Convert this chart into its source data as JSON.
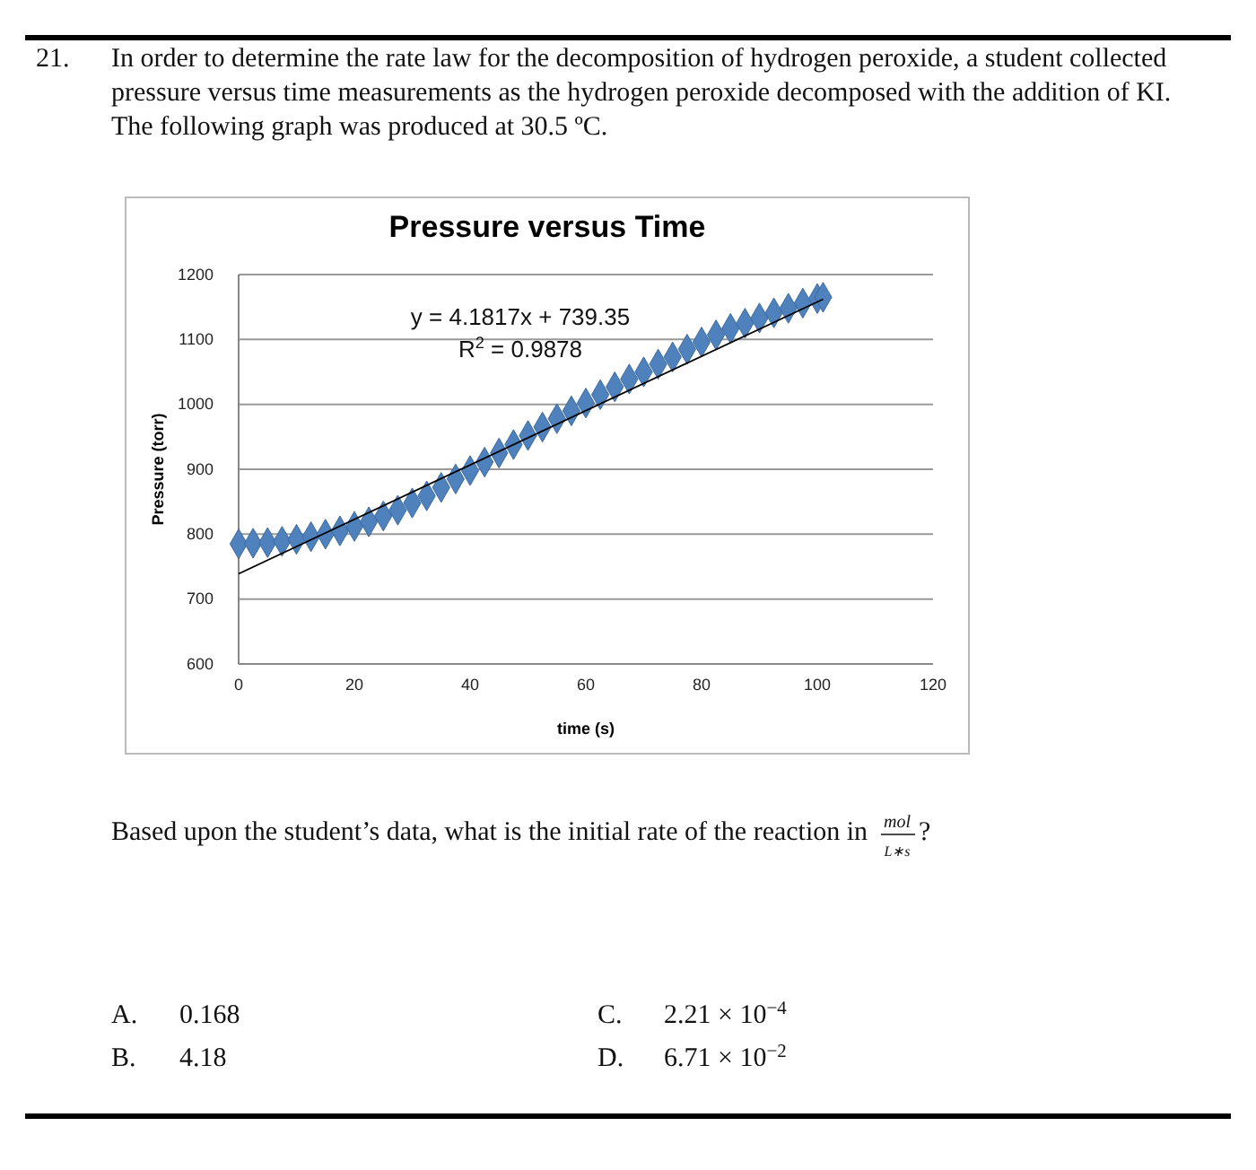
{
  "chart_data": {
    "type": "scatter",
    "title": "Pressure versus Time",
    "xlabel": "time (s)",
    "ylabel": "Pressure (torr)",
    "xlim": [
      0,
      120
    ],
    "xticks": [
      0,
      20,
      40,
      60,
      80,
      100,
      120
    ],
    "ylim": [
      600,
      1200
    ],
    "yticks": [
      600,
      700,
      800,
      900,
      1000,
      1100,
      1200
    ],
    "grid": "y",
    "series": [
      {
        "color": "#4f81bd",
        "marker": "diamond",
        "x": [
          0,
          2.5,
          5,
          7.5,
          10,
          12.5,
          15,
          17.5,
          20,
          22.5,
          25,
          27.5,
          30,
          32.5,
          35,
          37.5,
          40,
          42.5,
          45,
          47.5,
          50,
          52.5,
          55,
          57.5,
          60,
          62.5,
          65,
          67.5,
          70,
          72.5,
          75,
          77.5,
          80,
          82.5,
          85,
          87.5,
          90,
          92.5,
          95,
          97.5,
          100,
          101
        ],
        "values": [
          785,
          786,
          787,
          789,
          792,
          796,
          800,
          805,
          812,
          819,
          828,
          837,
          848,
          859,
          872,
          885,
          898,
          911,
          925,
          938,
          952,
          965,
          978,
          990,
          1002,
          1015,
          1027,
          1039,
          1050,
          1062,
          1073,
          1085,
          1096,
          1107,
          1117,
          1125,
          1133,
          1141,
          1148,
          1156,
          1163,
          1165
        ]
      },
      {
        "type": "line",
        "color": "#000000",
        "x": [
          0,
          101
        ],
        "values": [
          739,
          1162
        ]
      }
    ],
    "annotations": [
      "21.",
      "In order to determine the rate law for the decomposition of hydrogen peroxide, a student collected pressure versus time measurements as the hydrogen peroxide decomposed with the addition of KI. The following graph was produced at 30.5 ºC.",
      "y = 4.1817x + 739.35",
      "R$^{2}$ = 0.9878",
      "Based upon the student’s data, what is the initial rate of the reaction in",
      "mol",
      "L∗s",
      "?",
      "A.",
      "0.168",
      "B.",
      "4.18",
      "C.",
      "2.21 × 10$^{−4}$",
      "D.",
      "6.71 × 10$^{−2}$"
    ]
  }
}
